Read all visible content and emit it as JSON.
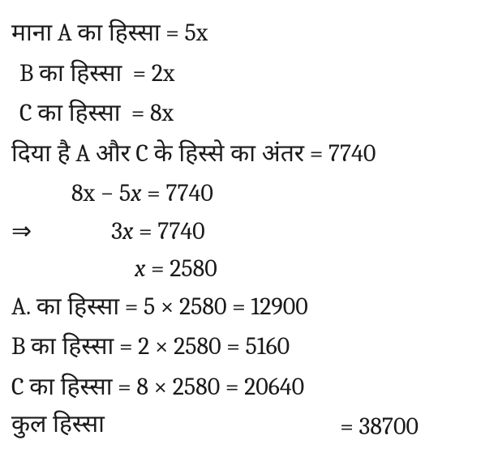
{
  "background_color": "#ffffff",
  "text_color": "#1a1a1a",
  "font_size": 30,
  "lines": {
    "l1_devPrefix": "माना",
    "l1_sym": "A",
    "l1_devMid": "का हिस्सा",
    "l1_eq": "=",
    "l1_rhs": "5x",
    "l2_sym": "B",
    "l2_dev": "का हिस्सा",
    "l2_eq": "=",
    "l2_rhs": "2x",
    "l3_sym": "C",
    "l3_dev": "का हिस्सा",
    "l3_eq": "=",
    "l3_rhs": "8x",
    "l4_devPrefix": "दिया है",
    "l4_symA": "A",
    "l4_devMid1": "और",
    "l4_symC": "C",
    "l4_devMid2": "के हिस्से का अंतर",
    "l4_eq": "=",
    "l4_rhs": "7740",
    "l5_a": "8x",
    "l5_minus": "−",
    "l5_b": "5",
    "l5_var": "x",
    "l5_eq": "=",
    "l5_rhs": "7740",
    "l6_arrow": "⇒",
    "l6_a": "3",
    "l6_var": "x",
    "l6_eq": "=",
    "l6_rhs": "7740",
    "l7_var": "x",
    "l7_eq": "=",
    "l7_rhs": "2580",
    "l8_sym": "A.",
    "l8_dev": "का हिस्सा",
    "l8_eq1": "=",
    "l8_exp": "5 × 2580",
    "l8_eq2": "=",
    "l8_rhs": "12900",
    "l9_sym": "B",
    "l9_dev": "का हिस्सा",
    "l9_eq1": "=",
    "l9_exp": "2 × 2580",
    "l9_eq2": "=",
    "l9_rhs": "5160",
    "l10_sym": "C",
    "l10_dev": "का हिस्सा",
    "l10_eq1": "=",
    "l10_exp": "8 × 2580",
    "l10_eq2": "=",
    "l10_rhs": "20640",
    "l11_dev": "कुल हिस्सा",
    "l11_eq": "=",
    "l11_rhs": "38700"
  }
}
